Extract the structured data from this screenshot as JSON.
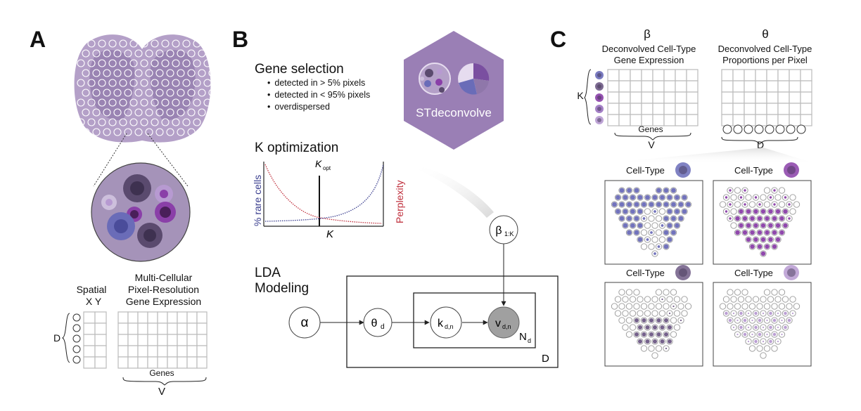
{
  "panels": {
    "a_letter": "A",
    "b_letter": "B",
    "c_letter": "C"
  },
  "panel_a": {
    "matrix_title": [
      "Multi-Cellular",
      "Pixel-Resolution",
      "Gene Expression"
    ],
    "spatial_label": "Spatial",
    "xy_label": "X Y",
    "d_label": "D",
    "genes_label": "Genes",
    "v_label": "V",
    "colors": {
      "tissue": "#b4a0c8",
      "tissue_light": "#cdbfdc",
      "tissue_dark": "#8f77aa",
      "cell_dark": "#5a4a6e",
      "cell_purple": "#8a3fa8",
      "cell_blue": "#6a6cb8",
      "cell_lilac": "#b79ad1"
    }
  },
  "panel_b": {
    "gene_selection_title": "Gene selection",
    "gene_selection_bullets": [
      "detected in > 5% pixels",
      "detected in < 95% pixels",
      "overdispersed"
    ],
    "hex_label": "STdeconvolve",
    "k_opt_title": "K optimization",
    "k_opt_label": "K",
    "k_opt_sub": "opt",
    "y_left_label": "% rare cells",
    "y_right_label": "Perplexity",
    "x_label": "K",
    "lda_title": [
      "LDA",
      "Modeling"
    ],
    "nodes": {
      "alpha": "α",
      "theta": "θ",
      "theta_sub": "d",
      "k": "k",
      "k_sub": "d,n",
      "v": "v",
      "v_sub": "d,n",
      "beta": "β",
      "beta_sub": "1:K"
    },
    "plate_inner": "N",
    "plate_inner_sub": "d",
    "plate_outer": "D",
    "colors": {
      "hex": "#9a7fb5",
      "rare_cells": "#3b3f8f",
      "perplexity": "#c0313e"
    }
  },
  "panel_c": {
    "beta_symbol": "β",
    "beta_title": [
      "Deconvolved Cell-Type",
      "Gene Expression"
    ],
    "theta_symbol": "θ",
    "theta_title": [
      "Deconvolved Cell-Type",
      "Proportions per Pixel"
    ],
    "k_label": "K",
    "genes_label": "Genes",
    "v_label": "V",
    "d_label": "D",
    "cell_type_label": "Cell-Type",
    "celltype_colors": [
      "#6a6cb8",
      "#8a3fa8",
      "#6e5a85",
      "#b79ad1"
    ],
    "k_dot_colors": [
      "#6a6cb8",
      "#6e5a85",
      "#8a3fa8",
      "#9a72c0",
      "#b79ad1"
    ]
  }
}
